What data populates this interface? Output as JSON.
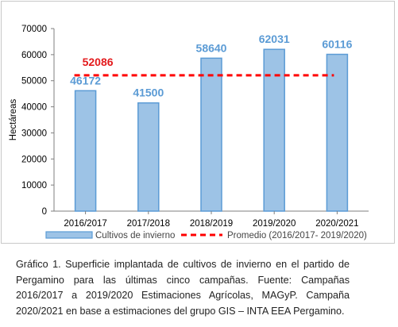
{
  "chart_data": {
    "type": "bar",
    "categories": [
      "2016/2017",
      "2017/2018",
      "2018/2019",
      "2019/2020",
      "2020/2021"
    ],
    "series": [
      {
        "name": "Cultivos de invierno",
        "values": [
          46172,
          41500,
          58640,
          62031,
          60116
        ],
        "color": "#9dc3e6",
        "stroke": "#5b9bd5"
      }
    ],
    "average": {
      "name": "Promedio (2016/2017- 2019/2020)",
      "value": 52086,
      "label": "52086",
      "color": "#ff0000"
    },
    "data_labels": [
      "46172",
      "41500",
      "58640",
      "62031",
      "60116"
    ],
    "ylabel": "Hectáreas",
    "ylim": [
      0,
      70000
    ],
    "yticks": [
      0,
      10000,
      20000,
      30000,
      40000,
      50000,
      60000,
      70000
    ],
    "ytick_labels": [
      "0",
      "10000",
      "20000",
      "30000",
      "40000",
      "50000",
      "60000",
      "70000"
    ],
    "legend_position": "bottom",
    "grid": false
  },
  "caption": "Gráfico 1. Superficie implantada de cultivos de invierno en el partido de Pergamino para las últimas cinco campañas. Fuente: Campañas 2016/2017 a 2019/2020 Estimaciones Agrícolas, MAGyP. Campaña 2020/2021 en base a estimaciones del grupo GIS – INTA EEA Pergamino."
}
